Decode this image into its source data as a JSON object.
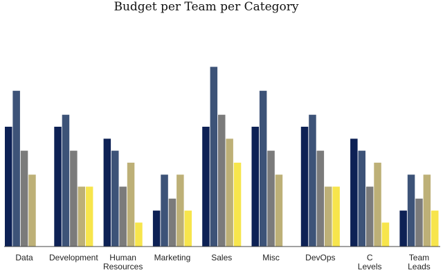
{
  "chart_data": {
    "type": "bar",
    "title": "Budget per Team per Category",
    "xlabel": "",
    "ylabel": "",
    "ylim": [
      0,
      15
    ],
    "grid": false,
    "categories": [
      [
        "Data"
      ],
      [
        "Development"
      ],
      [
        "Human",
        "Resources"
      ],
      [
        "Marketing"
      ],
      [
        "Sales"
      ],
      [
        "Misc"
      ],
      [
        "DevOps"
      ],
      [
        "C",
        "Levels"
      ],
      [
        "Team",
        "Leads"
      ]
    ],
    "series": [
      {
        "color": "#0d2155",
        "values": [
          10,
          10,
          9,
          3,
          10,
          10,
          10,
          9,
          3
        ]
      },
      {
        "color": "#3d5378",
        "values": [
          13,
          11,
          8,
          6,
          15,
          13,
          11,
          8,
          6
        ]
      },
      {
        "color": "#7b7b7b",
        "values": [
          8,
          8,
          5,
          4,
          11,
          8,
          8,
          5,
          4
        ]
      },
      {
        "color": "#bdb077",
        "values": [
          6,
          5,
          7,
          6,
          9,
          6,
          5,
          7,
          6
        ]
      },
      {
        "color": "#f7e54c",
        "values": [
          null,
          5,
          2,
          3,
          7,
          null,
          5,
          2,
          3
        ]
      }
    ]
  }
}
